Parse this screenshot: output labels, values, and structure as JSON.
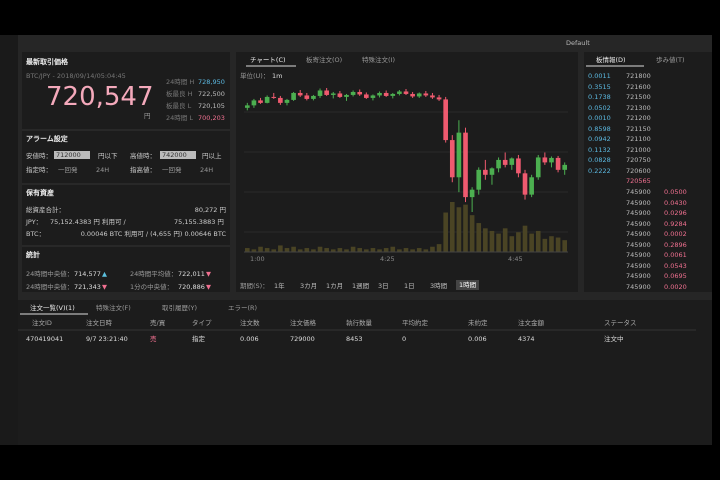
{
  "toolbar": {
    "theme": "Default"
  },
  "ticker": {
    "title": "最新取引価格",
    "pair": "BTC/JPY - 2018/09/14/05:04:45",
    "price": "720,547",
    "unit": "円",
    "stats": [
      [
        "24時間 H",
        "728,950"
      ],
      [
        "板最良 H",
        "722,500"
      ],
      [
        "板最良 L",
        "720,105"
      ],
      [
        "24時間 L",
        "700,203"
      ]
    ]
  },
  "alarm": {
    "title": "アラーム設定",
    "low_label": "安値時：",
    "low_value": "712000",
    "low_suffix": "円以下",
    "high_label": "高値時：",
    "high_value": "742000",
    "high_suffix": "円以上",
    "low_options": [
      "指定時：",
      "一回発",
      "24H"
    ],
    "high_options": [
      "指高値：",
      "一回発",
      "24H"
    ]
  },
  "holdings": {
    "title": "保有資産",
    "rows": [
      [
        "総資産合計：",
        "80,272 円"
      ],
      [
        "JPY：",
        "75,152.4383 円 利用可 /",
        "75,155.3883 円"
      ],
      [
        "BTC：",
        "0.00046 BTC 利用可 / (4,655 円) 0.00646 BTC"
      ]
    ]
  },
  "statistics": {
    "title": "統計",
    "items": [
      [
        "24時間中央値：",
        "714,577",
        "▲"
      ],
      [
        "24時間平均値：",
        "722,011",
        "▼"
      ],
      [
        "24時間中央値：",
        "721,343",
        "▼"
      ],
      [
        "1分の中央値：",
        "720,886",
        "▼"
      ]
    ]
  },
  "chart": {
    "type": "candlestick",
    "tabs": [
      "チャート(C)",
      "板寄注文(O)",
      "特殊注文(I)"
    ],
    "unit_label": "単位(U)：",
    "unit": "1m",
    "x_labels": [
      "1:00",
      "4:25",
      "4:45"
    ],
    "period_label": "期間(S)：",
    "periods": [
      "1年",
      "3カ月",
      "1カ月",
      "1週間",
      "3日",
      "1日",
      "3時間",
      "1時間"
    ],
    "up_color": "#4caf50",
    "down_color": "#ef5a6f",
    "ohlc": [
      [
        725000,
        726000,
        724500,
        725500
      ],
      [
        725500,
        726800,
        725000,
        726500
      ],
      [
        726500,
        727000,
        725800,
        726000
      ],
      [
        726000,
        727500,
        725900,
        727200
      ],
      [
        727200,
        728000,
        726800,
        727000
      ],
      [
        727000,
        727400,
        725600,
        726000
      ],
      [
        726000,
        726800,
        725500,
        726600
      ],
      [
        726600,
        728200,
        726400,
        728000
      ],
      [
        728000,
        728600,
        727200,
        727500
      ],
      [
        727500,
        728000,
        726500,
        726800
      ],
      [
        726800,
        727600,
        726500,
        727400
      ],
      [
        727400,
        728900,
        727000,
        728500
      ],
      [
        728500,
        729000,
        727400,
        727600
      ],
      [
        727600,
        728200,
        726900,
        727900
      ],
      [
        727900,
        728400,
        727000,
        727200
      ],
      [
        727200,
        727800,
        726400,
        727600
      ],
      [
        727600,
        728500,
        727300,
        728200
      ],
      [
        728200,
        728700,
        727400,
        727700
      ],
      [
        727700,
        728100,
        726800,
        727000
      ],
      [
        727000,
        727700,
        726500,
        727500
      ],
      [
        727500,
        728300,
        727100,
        728000
      ],
      [
        728000,
        728500,
        727200,
        727400
      ],
      [
        727400,
        728000,
        726900,
        727800
      ],
      [
        727800,
        728600,
        727500,
        728300
      ],
      [
        728300,
        728800,
        727600,
        727800
      ],
      [
        727800,
        728200,
        727000,
        727300
      ],
      [
        727300,
        728100,
        727000,
        727900
      ],
      [
        727900,
        728400,
        727200,
        727500
      ],
      [
        727500,
        728000,
        726800,
        727100
      ],
      [
        727100,
        727600,
        726400,
        726700
      ],
      [
        726700,
        727200,
        718000,
        718500
      ],
      [
        718500,
        719500,
        710000,
        711000
      ],
      [
        711000,
        722500,
        708000,
        720000
      ],
      [
        720000,
        721000,
        706000,
        707000
      ],
      [
        707000,
        709000,
        704000,
        708500
      ],
      [
        708500,
        713000,
        707500,
        712500
      ],
      [
        712500,
        714500,
        710500,
        711500
      ],
      [
        711500,
        713000,
        709500,
        712800
      ],
      [
        712800,
        715000,
        712000,
        714500
      ],
      [
        714500,
        716000,
        713000,
        713500
      ],
      [
        713500,
        715000,
        712500,
        714800
      ],
      [
        714800,
        715500,
        711000,
        711800
      ],
      [
        711800,
        712500,
        706500,
        707500
      ],
      [
        707500,
        711500,
        707000,
        711000
      ],
      [
        711000,
        715500,
        710500,
        715000
      ],
      [
        715000,
        716000,
        713500,
        714000
      ],
      [
        714000,
        715200,
        713000,
        714900
      ],
      [
        714900,
        715300,
        712000,
        712500
      ],
      [
        712500,
        714000,
        711500,
        713500
      ]
    ],
    "volume": [
      3,
      2,
      4,
      3,
      2,
      5,
      3,
      4,
      2,
      3,
      2,
      4,
      3,
      2,
      3,
      2,
      4,
      3,
      2,
      3,
      2,
      3,
      4,
      2,
      3,
      2,
      3,
      2,
      4,
      6,
      30,
      38,
      34,
      36,
      28,
      22,
      18,
      16,
      14,
      18,
      12,
      15,
      20,
      14,
      16,
      10,
      12,
      11,
      9
    ]
  },
  "orderbook": {
    "tabs": [
      "板情報(D)",
      "歩み値(T)"
    ],
    "asks": [
      [
        "0.0011",
        "721800"
      ],
      [
        "0.3515",
        "721600"
      ],
      [
        "0.1738",
        "721500"
      ],
      [
        "0.0502",
        "721300"
      ],
      [
        "0.0010",
        "721200"
      ],
      [
        "0.8598",
        "721150"
      ],
      [
        "0.0942",
        "721100"
      ],
      [
        "0.1132",
        "721000"
      ],
      [
        "0.0828",
        "720750"
      ],
      [
        "0.2222",
        "720600"
      ]
    ],
    "mid": "720565",
    "bids": [
      [
        "745900",
        "0.0500"
      ],
      [
        "745900",
        "0.0430"
      ],
      [
        "745900",
        "0.0296"
      ],
      [
        "745900",
        "0.9284"
      ],
      [
        "745900",
        "0.0002"
      ],
      [
        "745900",
        "0.2896"
      ],
      [
        "745900",
        "0.0061"
      ],
      [
        "745900",
        "0.0543"
      ],
      [
        "745900",
        "0.0695"
      ],
      [
        "745900",
        "0.0020"
      ]
    ]
  },
  "orders": {
    "tabs": [
      "注文一覧(V)(1)",
      "特殊注文(F)",
      "取引履歴(Y)",
      "エラー(R)"
    ],
    "headers": [
      "注文ID",
      "注文日時",
      "売/買",
      "タイプ",
      "注文数",
      "注文価格",
      "執行数量",
      "平均約定",
      "未約定",
      "注文金額",
      "ステータス"
    ],
    "rows": [
      [
        "470419041",
        "9/7 23:21:40",
        "売",
        "指定",
        "0.006",
        "729000",
        "8453",
        "0",
        "0.006",
        "4374",
        "注文中"
      ]
    ]
  }
}
